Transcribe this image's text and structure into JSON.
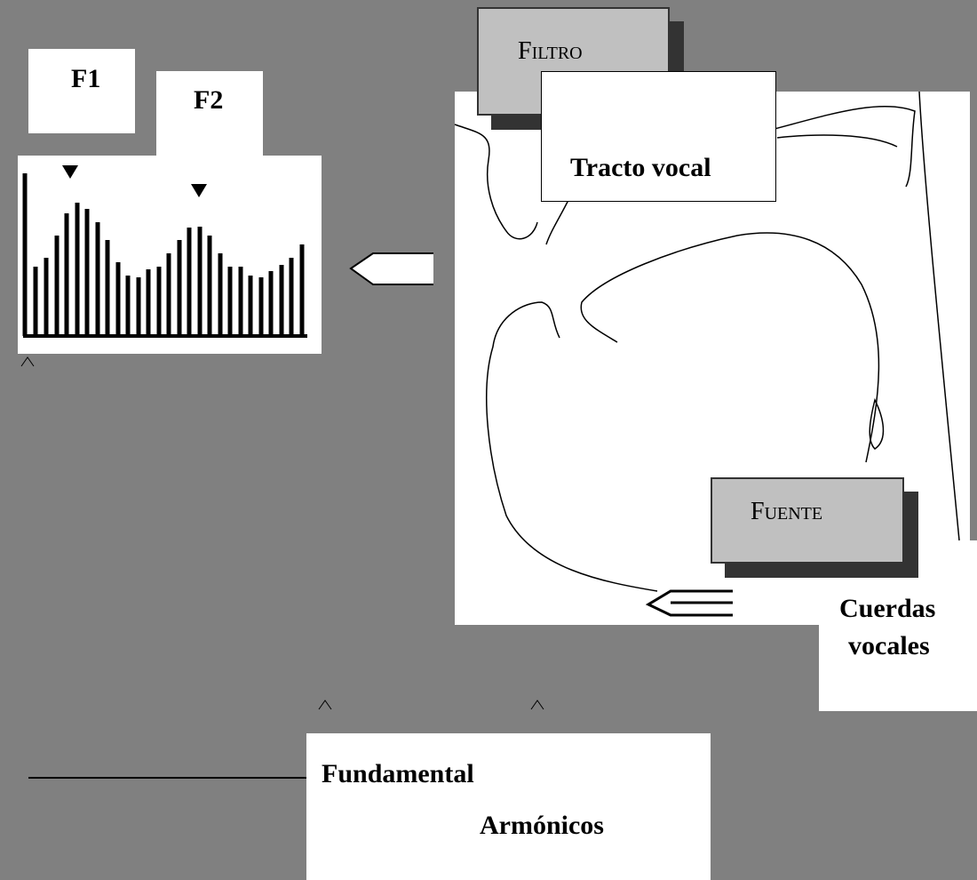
{
  "formants": {
    "f1": "F1",
    "f2": "F2"
  },
  "filter": {
    "title": "Filtro",
    "label": "Tracto vocal"
  },
  "source": {
    "title": "Fuente",
    "label_lines": [
      "Cuerdas",
      "vocales"
    ]
  },
  "legend": {
    "fundamental": "Fundamental",
    "harmonics": "Armónicos"
  }
}
